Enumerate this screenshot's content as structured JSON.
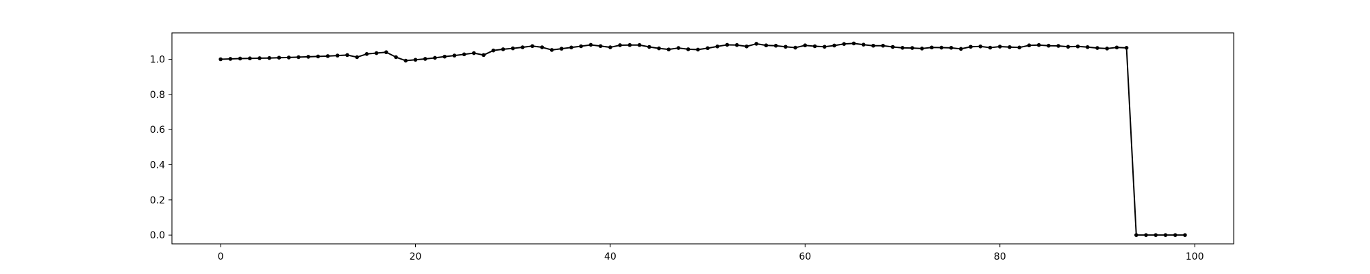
{
  "chart_data": {
    "type": "line",
    "title": "",
    "xlabel": "",
    "ylabel": "",
    "xlim": [
      -5,
      104
    ],
    "ylim": [
      -0.05,
      1.15
    ],
    "x_ticks": [
      0,
      20,
      40,
      60,
      80,
      100
    ],
    "x_tick_labels": [
      "0",
      "20",
      "40",
      "60",
      "80",
      "100"
    ],
    "y_ticks": [
      0.0,
      0.2,
      0.4,
      0.6,
      0.8,
      1.0
    ],
    "y_tick_labels": [
      "0.0",
      "0.2",
      "0.4",
      "0.6",
      "0.8",
      "1.0"
    ],
    "grid": false,
    "series": [
      {
        "color": "#000000",
        "marker": "circle",
        "x": [
          0,
          1,
          2,
          3,
          4,
          5,
          6,
          7,
          8,
          9,
          10,
          11,
          12,
          13,
          14,
          15,
          16,
          17,
          18,
          19,
          20,
          21,
          22,
          23,
          24,
          25,
          26,
          27,
          28,
          29,
          30,
          31,
          32,
          33,
          34,
          35,
          36,
          37,
          38,
          39,
          40,
          41,
          42,
          43,
          44,
          45,
          46,
          47,
          48,
          49,
          50,
          51,
          52,
          53,
          54,
          55,
          56,
          57,
          58,
          59,
          60,
          61,
          62,
          63,
          64,
          65,
          66,
          67,
          68,
          69,
          70,
          71,
          72,
          73,
          74,
          75,
          76,
          77,
          78,
          79,
          80,
          81,
          82,
          83,
          84,
          85,
          86,
          87,
          88,
          89,
          90,
          91,
          92,
          93,
          94,
          95,
          96,
          97,
          98,
          99
        ],
        "values": [
          1.0,
          1.002,
          1.004,
          1.005,
          1.006,
          1.007,
          1.009,
          1.01,
          1.012,
          1.014,
          1.016,
          1.018,
          1.021,
          1.024,
          1.012,
          1.03,
          1.035,
          1.04,
          1.012,
          0.992,
          0.997,
          1.002,
          1.008,
          1.015,
          1.021,
          1.028,
          1.035,
          1.024,
          1.05,
          1.057,
          1.062,
          1.068,
          1.075,
          1.068,
          1.053,
          1.06,
          1.067,
          1.074,
          1.082,
          1.075,
          1.068,
          1.08,
          1.081,
          1.081,
          1.07,
          1.062,
          1.056,
          1.064,
          1.057,
          1.055,
          1.063,
          1.073,
          1.082,
          1.081,
          1.073,
          1.088,
          1.079,
          1.077,
          1.071,
          1.066,
          1.079,
          1.074,
          1.071,
          1.078,
          1.087,
          1.09,
          1.083,
          1.077,
          1.077,
          1.07,
          1.065,
          1.064,
          1.061,
          1.067,
          1.066,
          1.065,
          1.059,
          1.071,
          1.073,
          1.066,
          1.072,
          1.069,
          1.067,
          1.079,
          1.081,
          1.077,
          1.076,
          1.071,
          1.073,
          1.069,
          1.064,
          1.061,
          1.067,
          1.065,
          0.0,
          0.0,
          0.0,
          0.0,
          0.0,
          0.0
        ]
      }
    ]
  }
}
